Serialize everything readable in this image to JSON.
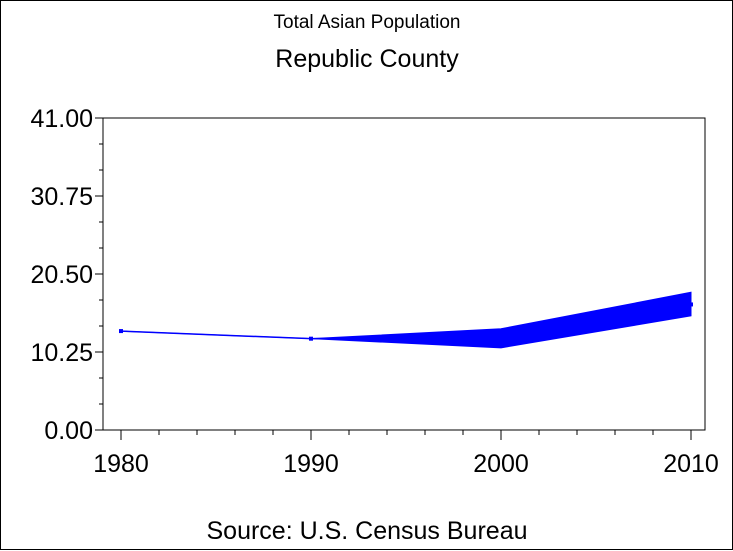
{
  "chart_data": {
    "type": "line",
    "title": "Total Asian Population",
    "subtitle": "Republic County",
    "footnote": "Source: U.S. Census Bureau",
    "xlabel": "",
    "ylabel": "",
    "x": [
      1980,
      1990,
      2000,
      2010
    ],
    "xlim": [
      1980,
      2010
    ],
    "ylim": [
      0,
      41
    ],
    "x_ticks": [
      "1980",
      "1990",
      "2000",
      "2010"
    ],
    "y_ticks": [
      "0.00",
      "10.25",
      "20.50",
      "30.75",
      "41.00"
    ],
    "y_tick_values": [
      0,
      10.25,
      20.5,
      30.75,
      41
    ],
    "series": [
      {
        "name": "Total Asian Population",
        "values": [
          13.0,
          12.0,
          12.0,
          16.5
        ],
        "lower": [
          13.0,
          12.0,
          10.8,
          15.0
        ],
        "upper": [
          13.0,
          12.0,
          13.3,
          18.1
        ],
        "color": "#0000ff"
      }
    ],
    "grid": false,
    "legend": "none"
  }
}
